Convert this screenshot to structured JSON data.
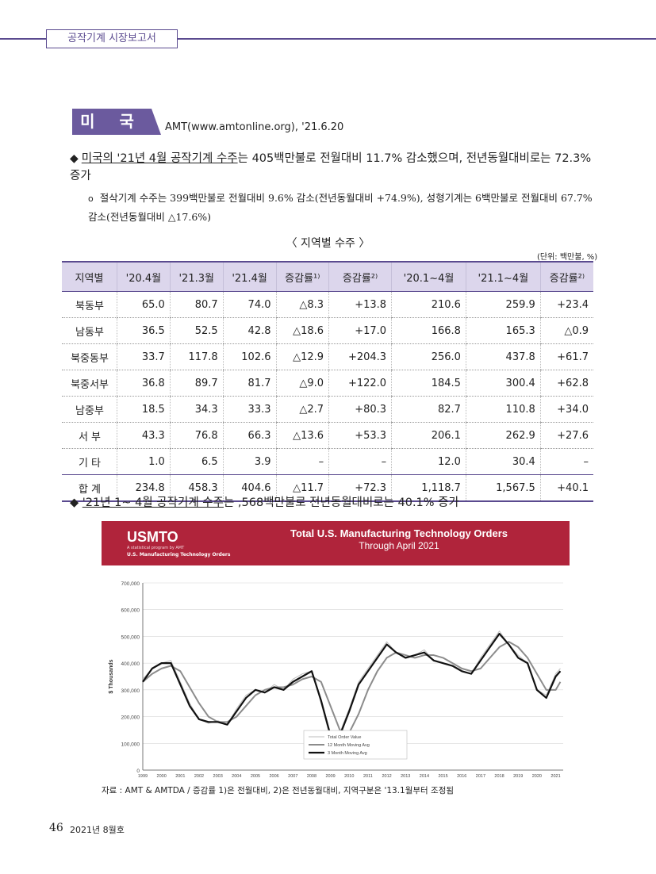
{
  "header": {
    "section_label": "공작기계 시장보고서"
  },
  "region": {
    "name": "미 국",
    "source": "AMT(www.amtonline.org), '21.6.20"
  },
  "bullet1": {
    "underlined": "미국의 '21년 4월 공작기계 수주",
    "rest": "는 405백만불로 전월대비 11.7% 감소했으며, 전년동월대비로는 72.3% 증가"
  },
  "bullet2": {
    "text": "절삭기계 수주는 399백만불로 전월대비 9.6% 감소(전년동월대비 +74.9%), 성형기계는 6백만불로 전월대비 67.7% 감소(전년동월대비 △17.6%)"
  },
  "table": {
    "title": "〈 지역별 수주 〉",
    "unit": "(단위: 백만불, %)",
    "headers": [
      "지역별",
      "'20.4월",
      "'21.3월",
      "'21.4월",
      "증감률¹⁾",
      "증감률²⁾",
      "'20.1~4월",
      "'21.1~4월",
      "증감률²⁾"
    ],
    "rows": [
      [
        "북동부",
        "65.0",
        "80.7",
        "74.0",
        "△8.3",
        "+13.8",
        "210.6",
        "259.9",
        "+23.4"
      ],
      [
        "남동부",
        "36.5",
        "52.5",
        "42.8",
        "△18.6",
        "+17.0",
        "166.8",
        "165.3",
        "△0.9"
      ],
      [
        "북중동부",
        "33.7",
        "117.8",
        "102.6",
        "△12.9",
        "+204.3",
        "256.0",
        "437.8",
        "+61.7"
      ],
      [
        "북중서부",
        "36.8",
        "89.7",
        "81.7",
        "△9.0",
        "+122.0",
        "184.5",
        "300.4",
        "+62.8"
      ],
      [
        "남중부",
        "18.5",
        "34.3",
        "33.3",
        "△2.7",
        "+80.3",
        "82.7",
        "110.8",
        "+34.0"
      ],
      [
        "서 부",
        "43.3",
        "76.8",
        "66.3",
        "△13.6",
        "+53.3",
        "206.1",
        "262.9",
        "+27.6"
      ],
      [
        "기 타",
        "1.0",
        "6.5",
        "3.9",
        "–",
        "–",
        "12.0",
        "30.4",
        "–"
      ]
    ],
    "total": [
      "합 계",
      "234.8",
      "458.3",
      "404.6",
      "△11.7",
      "+72.3",
      "1,118.7",
      "1,567.5",
      "+40.1"
    ]
  },
  "bullet3": {
    "underlined": "'21년 1~ 4월 공작기계 수주",
    "rest": "는 ,568백만불로 전년동월대비로는 40.1% 증가"
  },
  "chart_data": {
    "type": "line",
    "logo": "USMTO",
    "logo_sub": "A statistical program by AMT",
    "logo_sub2": "U.S. Manufacturing Technology Orders",
    "title": "Total U.S. Manufacturing Technology Orders",
    "subtitle": "Through April 2021",
    "ylabel": "$ Thousands",
    "ylim": [
      0,
      700000
    ],
    "yticks": [
      "0",
      "100,000",
      "200,000",
      "300,000",
      "400,000",
      "500,000",
      "600,000",
      "700,000"
    ],
    "xticks": [
      "1999",
      "2000",
      "2001",
      "2002",
      "2003",
      "2004",
      "2005",
      "2006",
      "2007",
      "2008",
      "2009",
      "2010",
      "2011",
      "2012",
      "2013",
      "2014",
      "2015",
      "2016",
      "2017",
      "2018",
      "2019",
      "2020",
      "2021"
    ],
    "legend": [
      "Total Order Value",
      "12 Month Moving Avg",
      "3 Month Moving Avg"
    ],
    "legend_position": "bottom-center",
    "colors": {
      "total": "#bdbdbd",
      "ma12": "#8c8c8c",
      "ma3": "#111111"
    },
    "x": [
      1999,
      1999.5,
      2000,
      2000.5,
      2001,
      2001.5,
      2002,
      2002.5,
      2003,
      2003.5,
      2004,
      2004.5,
      2005,
      2005.5,
      2006,
      2006.5,
      2007,
      2007.5,
      2008,
      2008.5,
      2009,
      2009.5,
      2010,
      2010.5,
      2011,
      2011.5,
      2012,
      2012.5,
      2013,
      2013.5,
      2014,
      2014.5,
      2015,
      2015.5,
      2016,
      2016.5,
      2017,
      2017.5,
      2018,
      2018.5,
      2019,
      2019.5,
      2020,
      2020.5,
      2021,
      2021.25
    ],
    "series": [
      {
        "name": "Total Order Value",
        "values": [
          340000,
          380000,
          400000,
          410000,
          330000,
          250000,
          190000,
          175000,
          185000,
          170000,
          230000,
          280000,
          300000,
          290000,
          320000,
          300000,
          340000,
          360000,
          370000,
          250000,
          120000,
          140000,
          230000,
          330000,
          380000,
          430000,
          480000,
          440000,
          420000,
          430000,
          450000,
          410000,
          400000,
          390000,
          370000,
          360000,
          420000,
          470000,
          520000,
          470000,
          430000,
          400000,
          300000,
          280000,
          360000,
          380000
        ]
      },
      {
        "name": "12 Month Moving Avg",
        "values": [
          330000,
          360000,
          380000,
          390000,
          370000,
          310000,
          250000,
          200000,
          180000,
          180000,
          200000,
          240000,
          280000,
          300000,
          310000,
          310000,
          320000,
          340000,
          350000,
          330000,
          240000,
          150000,
          140000,
          210000,
          300000,
          370000,
          420000,
          440000,
          430000,
          420000,
          430000,
          430000,
          420000,
          400000,
          380000,
          370000,
          380000,
          420000,
          460000,
          480000,
          460000,
          420000,
          360000,
          300000,
          300000,
          330000
        ]
      },
      {
        "name": "3 Month Moving Avg",
        "values": [
          330000,
          380000,
          400000,
          400000,
          320000,
          240000,
          190000,
          180000,
          180000,
          170000,
          220000,
          270000,
          300000,
          290000,
          310000,
          300000,
          330000,
          350000,
          370000,
          260000,
          130000,
          130000,
          220000,
          320000,
          370000,
          420000,
          470000,
          440000,
          420000,
          430000,
          440000,
          410000,
          400000,
          390000,
          370000,
          360000,
          410000,
          460000,
          510000,
          470000,
          420000,
          400000,
          300000,
          270000,
          350000,
          370000
        ]
      }
    ]
  },
  "caption": "자료 : AMT & AMTDA / 증감률 1)은 전월대비, 2)은 전년동월대비, 지역구분은 '13.1월부터 조정됨",
  "footer": {
    "page_number": "46",
    "issue": "2021년 8월호"
  }
}
